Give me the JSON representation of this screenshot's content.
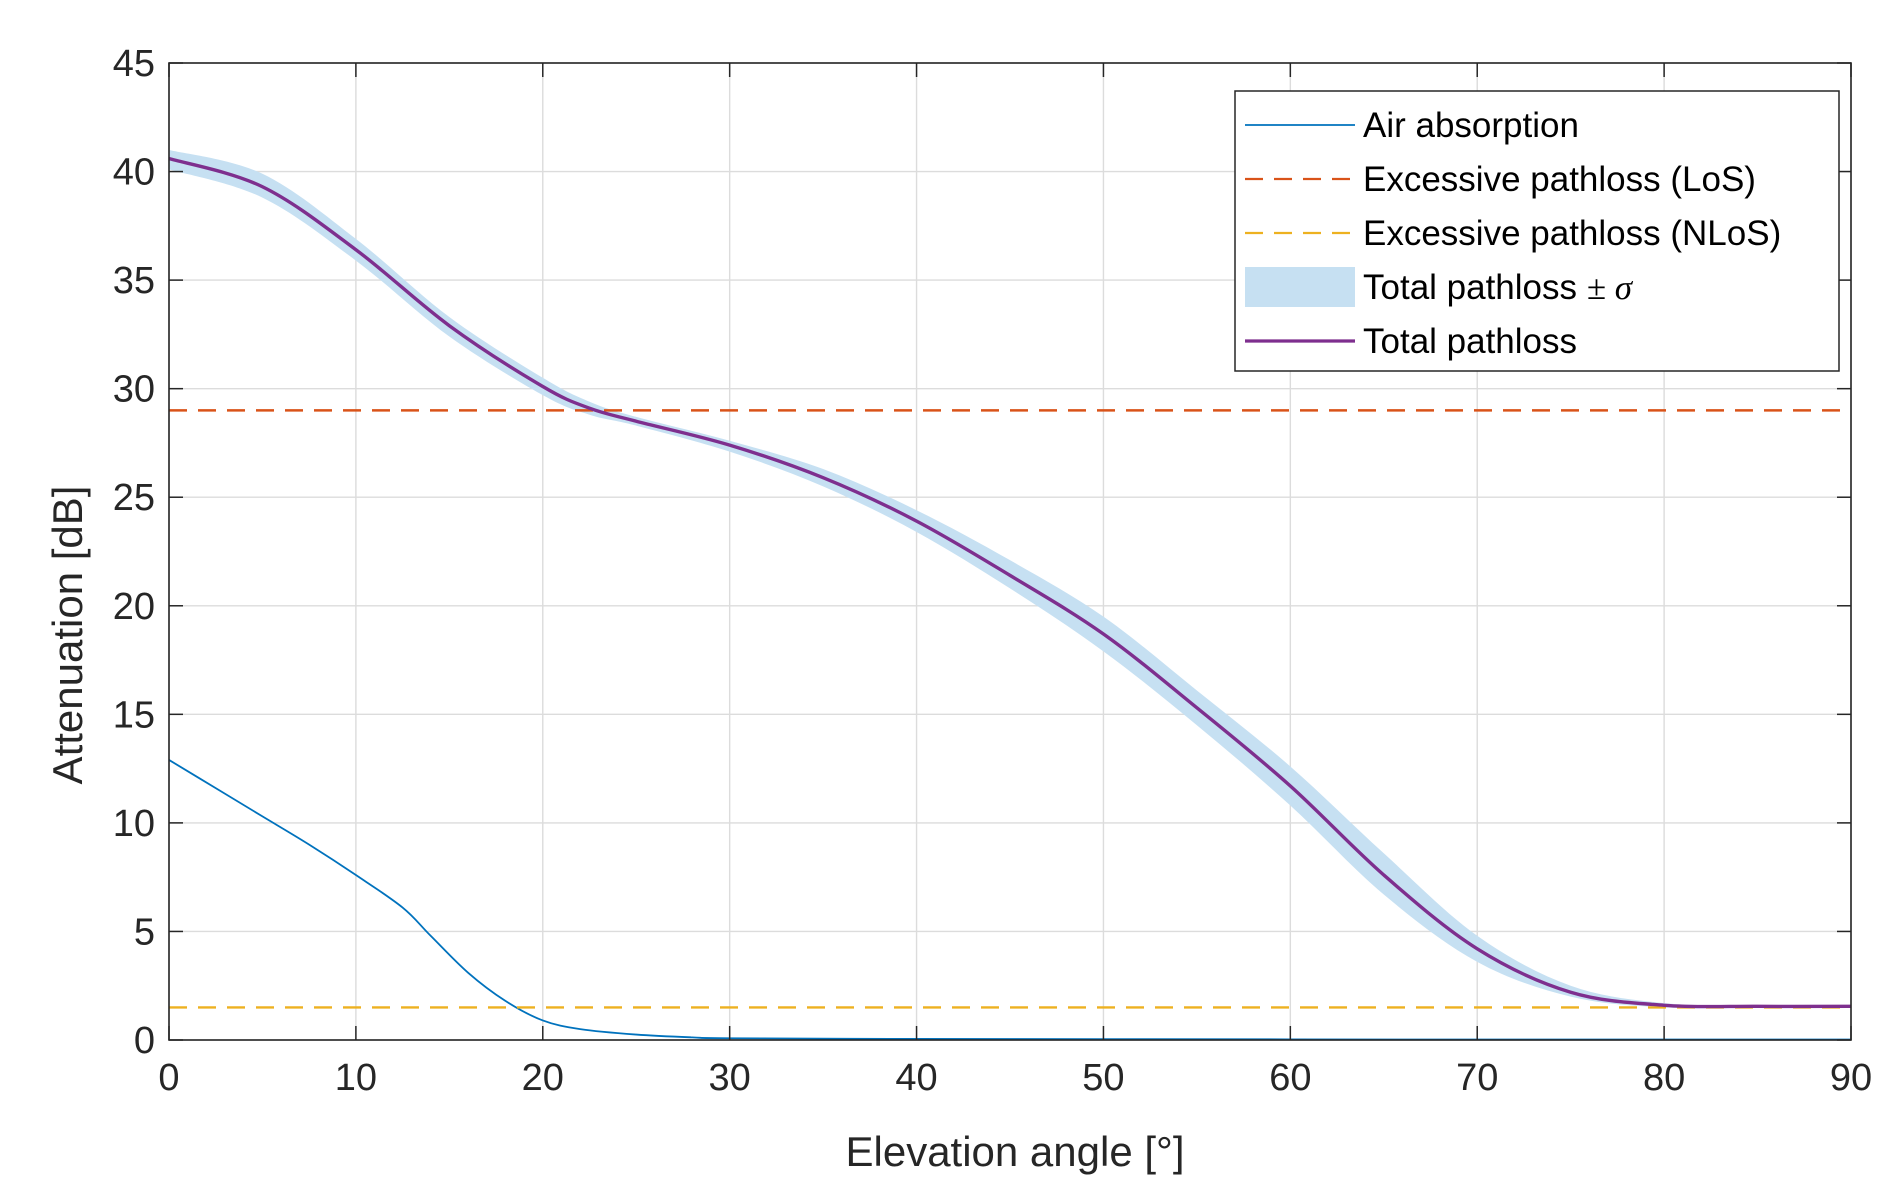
{
  "chart_data": {
    "type": "line",
    "title": "",
    "xlabel": "Elevation angle [°]",
    "ylabel": "Attenuation [dB]",
    "xlim": [
      0,
      90
    ],
    "ylim": [
      0,
      45
    ],
    "xticks": [
      0,
      10,
      20,
      30,
      40,
      50,
      60,
      70,
      80,
      90
    ],
    "yticks": [
      0,
      5,
      10,
      15,
      20,
      25,
      30,
      35,
      40,
      45
    ],
    "grid": true,
    "legend_position": "top-right",
    "series": [
      {
        "name": "Air absorption",
        "style": "solid",
        "color": "#0072BD",
        "x": [
          0,
          2.5,
          5,
          7.5,
          10,
          12.5,
          14,
          16,
          18,
          20,
          22,
          25,
          28,
          30,
          40,
          50,
          60,
          70,
          80,
          90
        ],
        "y": [
          12.9,
          11.6,
          10.3,
          9.0,
          7.6,
          6.1,
          4.8,
          3.1,
          1.8,
          0.9,
          0.5,
          0.25,
          0.12,
          0.08,
          0.05,
          0.04,
          0.03,
          0.02,
          0.02,
          0.02
        ]
      },
      {
        "name": "Excessive pathloss (LoS)",
        "style": "dashed",
        "color": "#D95319",
        "x": [
          0,
          90
        ],
        "y": [
          29.0,
          29.0
        ]
      },
      {
        "name": "Excessive pathloss (NLoS)",
        "style": "dashed",
        "color": "#EDB120",
        "x": [
          0,
          90
        ],
        "y": [
          1.5,
          1.5
        ]
      },
      {
        "name": "Total pathloss ± σ",
        "style": "band",
        "color": "#C6E0F2",
        "x": [
          0,
          5,
          10,
          15,
          20,
          22.5,
          25,
          30,
          35,
          40,
          45,
          50,
          55,
          60,
          65,
          70,
          75,
          80,
          85,
          90
        ],
        "lower": [
          40.1,
          38.8,
          35.9,
          32.4,
          29.7,
          28.8,
          28.3,
          27.1,
          25.5,
          23.4,
          20.8,
          17.9,
          14.5,
          10.8,
          6.7,
          3.6,
          2.0,
          1.5,
          1.5,
          1.5
        ],
        "upper": [
          41.0,
          39.9,
          36.9,
          33.3,
          30.5,
          29.4,
          28.7,
          27.6,
          26.3,
          24.4,
          22.1,
          19.5,
          16.1,
          12.6,
          8.6,
          4.8,
          2.5,
          1.7,
          1.6,
          1.6
        ]
      },
      {
        "name": "Total pathloss",
        "style": "solid",
        "color": "#7E2F8E",
        "x": [
          0,
          5,
          10,
          15,
          20,
          22.5,
          25,
          30,
          35,
          40,
          45,
          50,
          55,
          60,
          65,
          70,
          75,
          80,
          85,
          90
        ],
        "y": [
          40.6,
          39.3,
          36.4,
          32.9,
          30.1,
          29.1,
          28.5,
          27.4,
          25.9,
          23.9,
          21.4,
          18.7,
          15.3,
          11.7,
          7.6,
          4.2,
          2.2,
          1.6,
          1.55,
          1.55
        ]
      }
    ],
    "legend": [
      {
        "label": "Air absorption",
        "sym": ""
      },
      {
        "label": "Excessive pathloss (LoS)",
        "sym": ""
      },
      {
        "label": "Excessive pathloss (NLoS)",
        "sym": ""
      },
      {
        "label": "Total pathloss ",
        "sym": "± σ"
      },
      {
        "label": "Total pathloss",
        "sym": ""
      }
    ]
  }
}
